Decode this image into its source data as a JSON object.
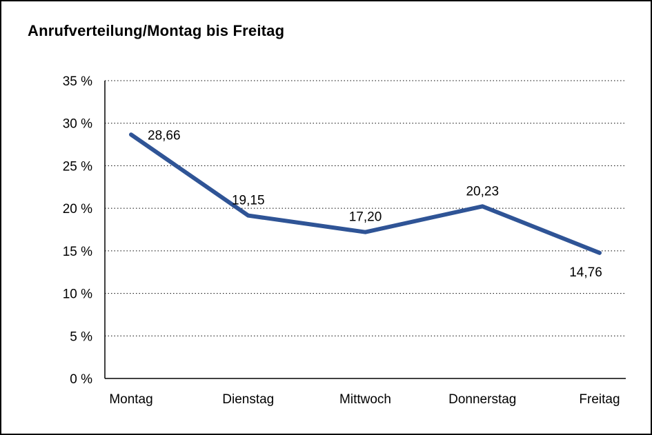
{
  "chart_data": {
    "type": "line",
    "title": "Anrufverteilung/Montag bis Freitag",
    "categories": [
      "Montag",
      "Dienstag",
      "Mittwoch",
      "Donnerstag",
      "Freitag"
    ],
    "values": [
      28.66,
      19.15,
      17.2,
      20.23,
      14.76
    ],
    "value_labels": [
      "28,66",
      "19,15",
      "17,20",
      "20,23",
      "14,76"
    ],
    "label_positions": [
      "right",
      "above",
      "above",
      "above",
      "below"
    ],
    "xlabel": "",
    "ylabel": "",
    "ylim": [
      0,
      35
    ],
    "ytick_step": 5,
    "ytick_labels": [
      "0 %",
      "5 %",
      "10 %",
      "15 %",
      "20 %",
      "25 %",
      "30 %",
      "35 %"
    ],
    "grid": "dotted-horizontal",
    "legend": "none",
    "line_color": "#2f5496",
    "axis_color": "#000000",
    "background_color": "#ffffff"
  }
}
